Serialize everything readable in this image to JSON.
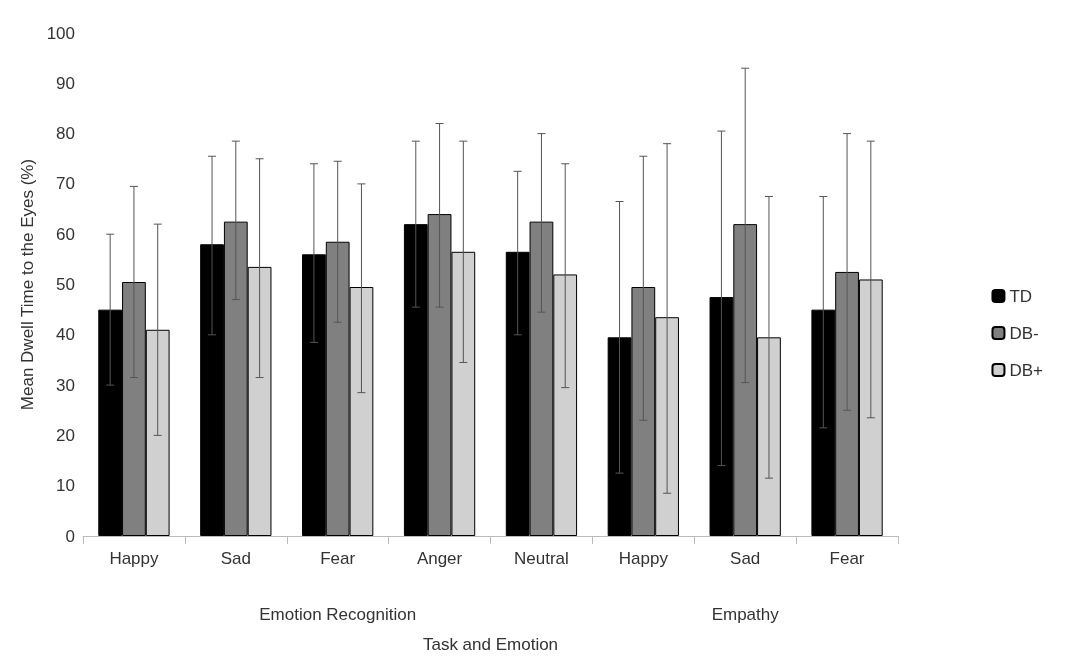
{
  "chart_data": {
    "type": "bar",
    "xlabel": "Task and Emotion",
    "ylabel": "Mean Dwell Time to the Eyes (%)",
    "categories": [
      "Happy",
      "Sad",
      "Fear",
      "Anger",
      "Neutral",
      "Happy",
      "Sad",
      "Fear"
    ],
    "annotations": [
      "Emotion Recognition",
      "Empathy"
    ],
    "series": [
      {
        "name": "TD",
        "color": "#000000",
        "values": [
          45,
          58,
          56,
          62,
          56.5,
          39.5,
          47.5,
          45
        ],
        "errors": [
          [
            30,
            60
          ],
          [
            40,
            75.5
          ],
          [
            38.5,
            74
          ],
          [
            45.5,
            78.5
          ],
          [
            40,
            72.5
          ],
          [
            12.5,
            66.5
          ],
          [
            14,
            80.5
          ],
          [
            21.5,
            67.5
          ]
        ]
      },
      {
        "name": "DB-",
        "color": "#808080",
        "values": [
          50.5,
          62.5,
          58.5,
          64,
          62.5,
          49.5,
          62,
          52.5
        ],
        "errors": [
          [
            31.5,
            69.5
          ],
          [
            47,
            78.5
          ],
          [
            42.5,
            74.5
          ],
          [
            45.5,
            82
          ],
          [
            44.5,
            80
          ],
          [
            23,
            75.5
          ],
          [
            30.5,
            93
          ],
          [
            25,
            80
          ]
        ]
      },
      {
        "name": "DB+",
        "color": "#d0d0d0",
        "values": [
          41,
          53.5,
          49.5,
          56.5,
          52,
          43.5,
          39.5,
          51
        ],
        "errors": [
          [
            20,
            62
          ],
          [
            31.5,
            75
          ],
          [
            28.5,
            70
          ],
          [
            34.5,
            78.5
          ],
          [
            29.5,
            74
          ],
          [
            8.5,
            78
          ],
          [
            11.5,
            67.5
          ],
          [
            23.5,
            78.5
          ]
        ]
      }
    ],
    "ylim": [
      0,
      100
    ],
    "yticks": [
      0,
      10,
      20,
      30,
      40,
      50,
      60,
      70,
      80,
      90,
      100
    ],
    "grid": false,
    "legend": "right"
  }
}
